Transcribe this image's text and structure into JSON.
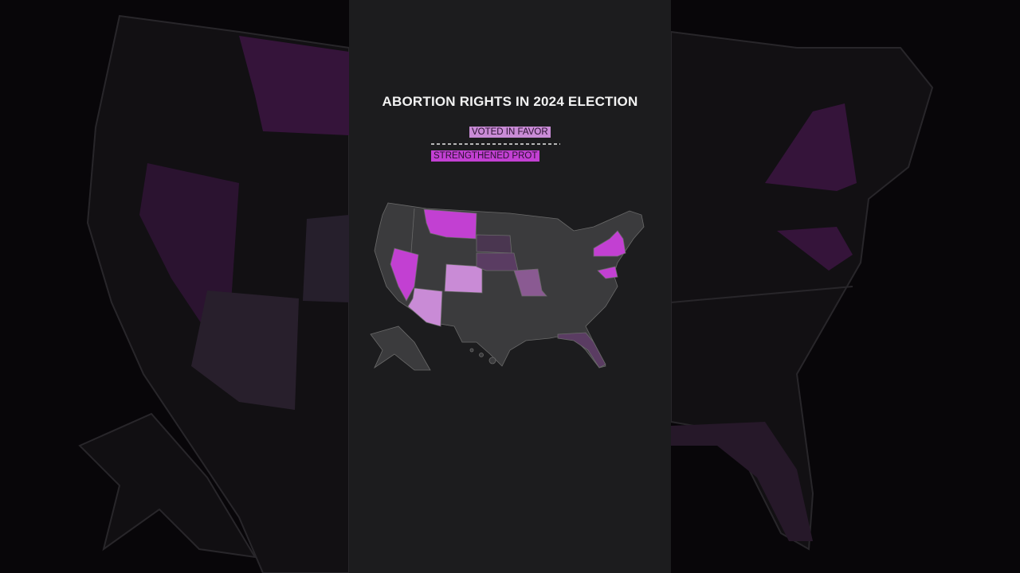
{
  "title": "ABORTION RIGHTS IN 2024 ELECTION",
  "legend": {
    "items": [
      {
        "label": "VOTED IN FAVOR"
      },
      {
        "label": "STRENGTHENED PROT"
      }
    ]
  }
}
